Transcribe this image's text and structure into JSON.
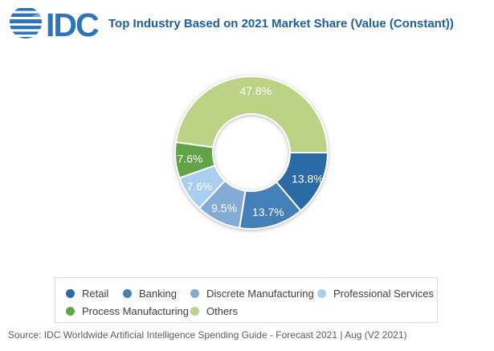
{
  "header": {
    "logo_text": "IDC",
    "title": "Top Industry Based on 2021 Market Share (Value (Constant))"
  },
  "chart_data": {
    "type": "pie",
    "subtype": "donut",
    "title": "Top Industry Based on 2021 Market Share (Value (Constant))",
    "unit": "%",
    "start_angle_deg": 90,
    "direction": "clockwise",
    "legend_position": "bottom",
    "segments": [
      {
        "label": "Retail",
        "value": 13.8,
        "display": "13.8%",
        "color": "#2b6ba5"
      },
      {
        "label": "Banking",
        "value": 13.7,
        "display": "13.7%",
        "color": "#4480b8"
      },
      {
        "label": "Discrete Manufacturing",
        "value": 9.5,
        "display": "9.5%",
        "color": "#84abd6"
      },
      {
        "label": "Professional Services",
        "value": 7.6,
        "display": "7.6%",
        "color": "#a9cef0"
      },
      {
        "label": "Process Manufacturing",
        "value": 7.6,
        "display": "7.6%",
        "color": "#63a347"
      },
      {
        "label": "Others",
        "value": 47.8,
        "display": "47.8%",
        "color": "#bcd385"
      }
    ]
  },
  "footer": {
    "source": "Source: IDC Worldwide Artificial Intelligence Spending Guide - Forecast 2021 | Aug (V2 2021)"
  }
}
